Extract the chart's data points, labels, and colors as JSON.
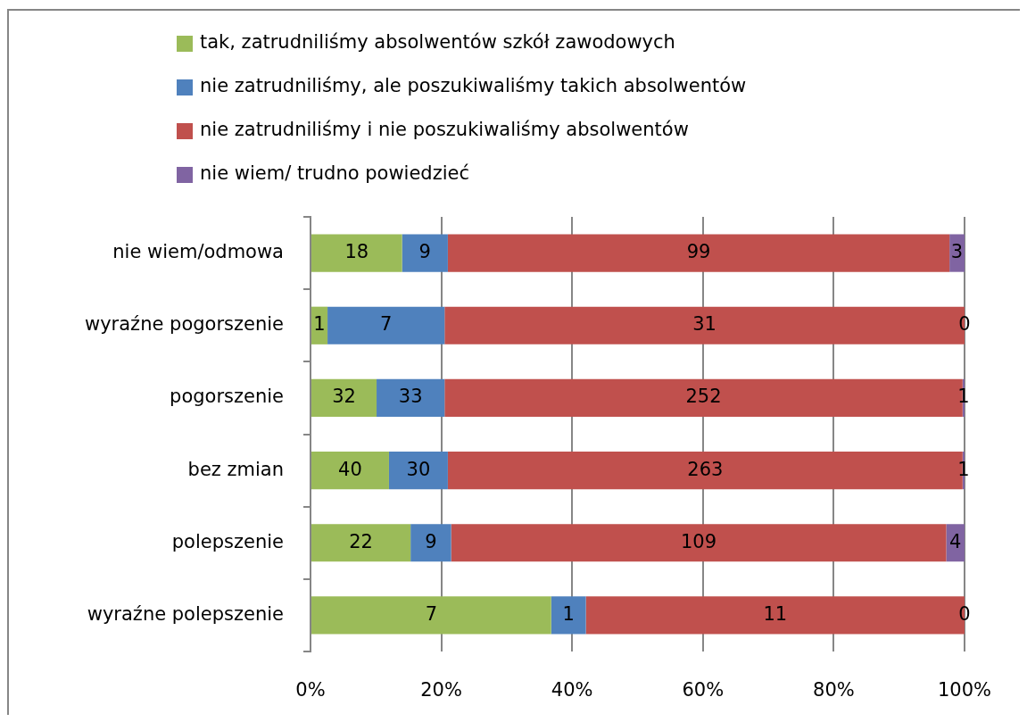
{
  "chart_data": {
    "type": "bar",
    "orientation": "horizontal",
    "stacked": true,
    "categories": [
      "nie wiem/odmowa",
      "wyraźne pogorszenie",
      "pogorszenie",
      "bez zmian",
      "polepszenie",
      "wyraźne polepszenie"
    ],
    "series": [
      {
        "name": "tak, zatrudniliśmy absolwentów szkół zawodowych",
        "color": "#9bbb59",
        "values": [
          14.0,
          2.6,
          10.1,
          12.0,
          15.3,
          36.8
        ]
      },
      {
        "name": "nie zatrudniliśmy, ale poszukiwaliśmy takich absolwentów",
        "color": "#4f81bd",
        "values": [
          7.0,
          17.9,
          10.4,
          9.0,
          6.2,
          5.3
        ]
      },
      {
        "name": "nie zatrudniliśmy i nie poszukiwaliśmy absolwentów",
        "color": "#c0504d",
        "values": [
          76.7,
          79.5,
          79.2,
          78.7,
          75.7,
          57.9
        ]
      },
      {
        "name": "nie wiem/ trudno powiedzieć",
        "color": "#8064a2",
        "values": [
          2.3,
          0,
          0.3,
          0.3,
          2.8,
          0
        ]
      }
    ],
    "xlim": [
      0,
      100
    ],
    "xticks": [
      {
        "value": 0,
        "label": "0%"
      },
      {
        "value": 20,
        "label": "20%"
      },
      {
        "value": 40,
        "label": "40%"
      },
      {
        "value": 60,
        "label": "60%"
      },
      {
        "value": 80,
        "label": "80%"
      },
      {
        "value": 100,
        "label": "100%"
      }
    ],
    "grid": "x",
    "legend": "top",
    "annotations": [
      "18",
      "9",
      "99",
      "3",
      "1",
      "7",
      "31",
      "0",
      "32",
      "33",
      "252",
      "1",
      "40",
      "30",
      "263",
      "1",
      "22",
      "9",
      "109",
      "4",
      "7",
      "1",
      "11",
      "0"
    ]
  }
}
